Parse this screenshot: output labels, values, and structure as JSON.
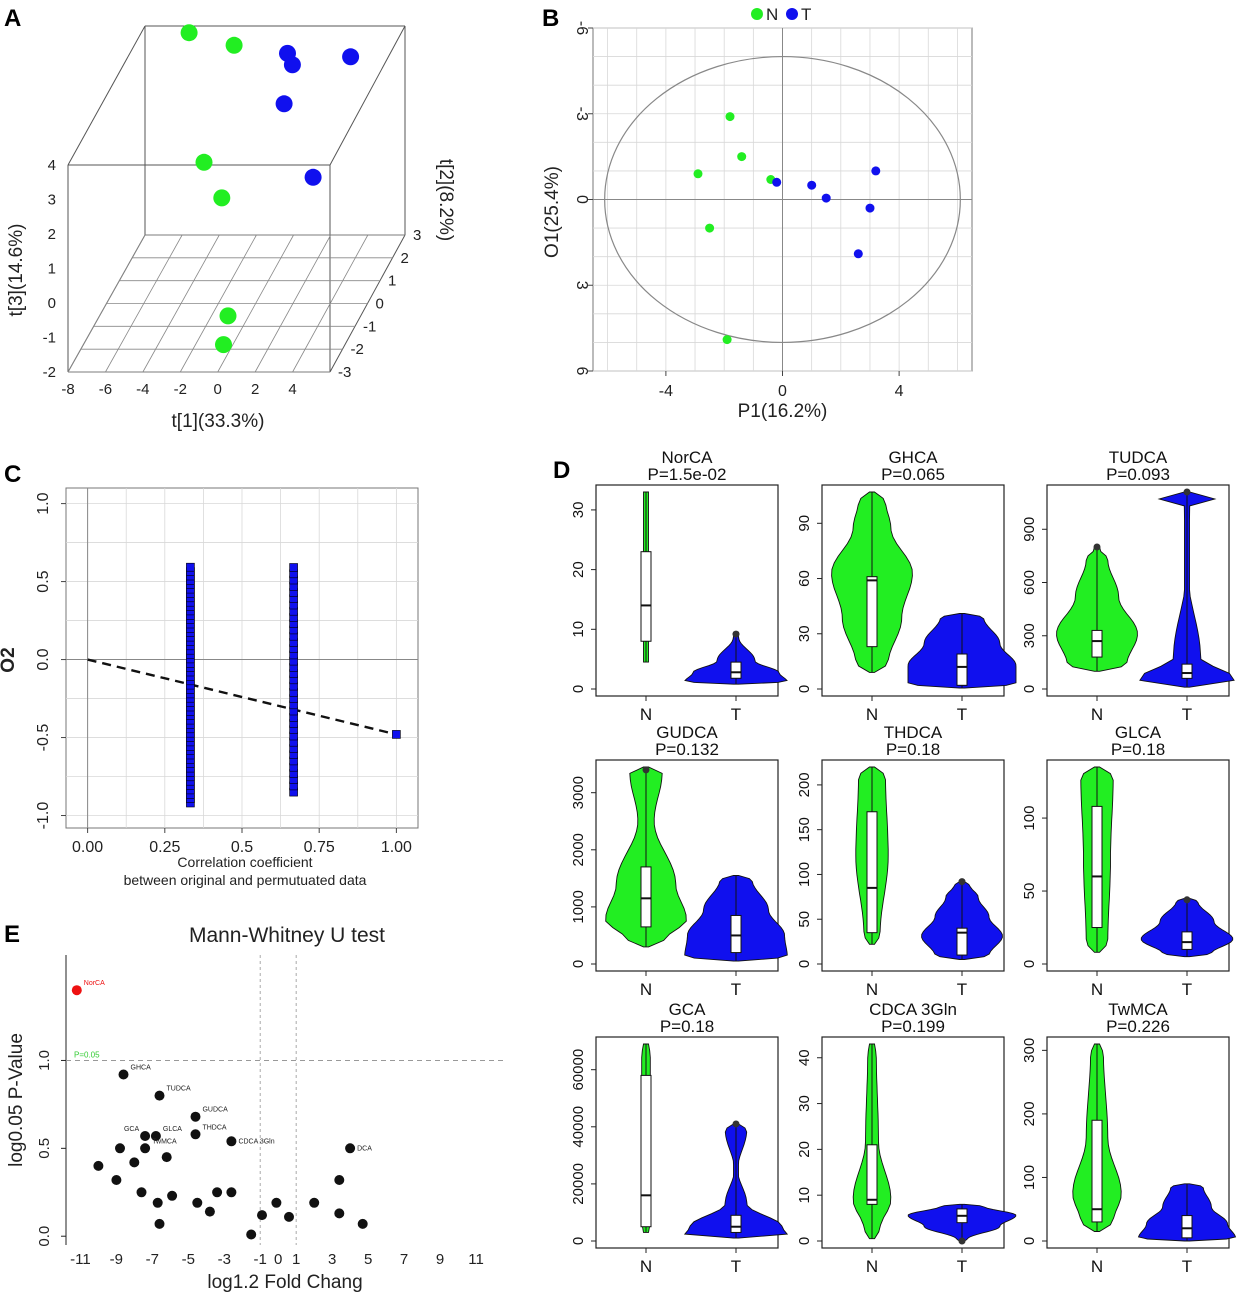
{
  "colors": {
    "green": "#22ee22",
    "blue": "#1010ee",
    "red": "#ee1111",
    "black": "#111111",
    "frame": "#555555",
    "grid": "#d8d8d8",
    "sig_text": "#33cc33"
  },
  "chart_data": [
    {
      "panel": "A",
      "type": "scatter",
      "projection": "3d",
      "xlabel": "t[1](33.3%)",
      "ylabel": "t[3](14.6%)",
      "zlabel": "t[2](8.2%)",
      "x_ticks": [
        "-8",
        "-6",
        "-4",
        "-2",
        "0",
        "2",
        "4"
      ],
      "y_ticks": [
        "-2",
        "-1",
        "0",
        "1",
        "2",
        "3",
        "4"
      ],
      "z_ticks": [
        "-3",
        "-2",
        "-1",
        "0",
        "1",
        "2",
        "3"
      ],
      "xlim": [
        -8,
        6
      ],
      "ylim": [
        -2,
        4
      ],
      "zlim": [
        -3,
        3
      ],
      "series": [
        {
          "name": "N",
          "color": "green",
          "points": [
            [
              -5.9,
              3.6,
              3.4
            ],
            [
              -3.2,
              3.5,
              3.0
            ],
            [
              -4.0,
              0.9,
              1.8
            ],
            [
              -2.7,
              0.2,
              1.3
            ],
            [
              -0.6,
              -1.5,
              -1.3
            ],
            [
              -0.3,
              -1.8,
              -2.1
            ]
          ]
        },
        {
          "name": "T",
          "color": "blue",
          "points": [
            [
              -2.5,
              4.4,
              4.6
            ],
            [
              -0.6,
              3.0,
              3.4
            ],
            [
              -0.2,
              2.8,
              3.2
            ],
            [
              -0.1,
              2.2,
              2.4
            ],
            [
              2.8,
              2.9,
              3.4
            ],
            [
              2.0,
              0.6,
              1.6
            ]
          ]
        }
      ]
    },
    {
      "panel": "B",
      "type": "scatter",
      "xlabel": "P1(16.2%)",
      "ylabel": "O1(25.4%)",
      "legend": [
        "N",
        "T"
      ],
      "x_ticks": [
        "-4",
        "0",
        "4"
      ],
      "y_ticks": [
        "-6",
        "-3",
        "0",
        "3",
        "6"
      ],
      "xlim": [
        -6.5,
        6.5
      ],
      "ylim": [
        6,
        -6
      ],
      "series": [
        {
          "name": "N",
          "color": "green",
          "points": [
            [
              -1.8,
              -2.9
            ],
            [
              -1.4,
              -1.5
            ],
            [
              -2.9,
              -0.9
            ],
            [
              -0.4,
              -0.7
            ],
            [
              -2.5,
              1.0
            ],
            [
              -1.9,
              4.9
            ]
          ]
        },
        {
          "name": "T",
          "color": "blue",
          "points": [
            [
              -0.2,
              -0.6
            ],
            [
              1.0,
              -0.5
            ],
            [
              1.5,
              -0.05
            ],
            [
              3.2,
              -1.0
            ],
            [
              3.0,
              0.3
            ],
            [
              2.6,
              1.9
            ]
          ]
        }
      ]
    },
    {
      "panel": "C",
      "type": "scatter",
      "ylabel": "O2",
      "xlabel": "Correlation coefficient",
      "xlabel2": "between original and permutuated data",
      "x_ticks": [
        "0.00",
        "0.25",
        "0.5",
        "0.75",
        "1.00"
      ],
      "y_ticks": [
        "1.0",
        "0.5",
        "0.0",
        "-0.5",
        "-1.0"
      ],
      "xlim": [
        -0.07,
        1.07
      ],
      "ylim": [
        -1.08,
        1.1
      ],
      "columns": [
        {
          "x": 0.333,
          "from": -0.92,
          "to": 0.6,
          "step": 0.028
        },
        {
          "x": 0.667,
          "from": -0.85,
          "to": 0.6,
          "step": 0.04
        }
      ],
      "point": [
        1.0,
        -0.48
      ],
      "trend": [
        [
          0,
          0
        ],
        [
          1.0,
          -0.48
        ]
      ]
    },
    {
      "panel": "D",
      "type": "violin",
      "categories": [
        "N",
        "T"
      ],
      "plots": [
        {
          "title": "NorCA",
          "p": "P=1.5e-02",
          "yt": [
            "0",
            "10",
            "20",
            "30"
          ],
          "ymin": 0,
          "ymax": 33,
          "N": {
            "min": 4.5,
            "max": 33,
            "q1": 8,
            "med": 14,
            "q3": 23,
            "out": null,
            "prof": [
              [
                0.35,
                0
              ],
              [
                0.42,
                0
              ],
              [
                0.5,
                0
              ],
              [
                0.6,
                0
              ]
            ]
          },
          "T": {
            "min": 0.8,
            "max": 9.5,
            "q1": 1.8,
            "med": 2.8,
            "q3": 4.5,
            "out": 9.2,
            "prof": [
              [
                0.05,
                0.95
              ],
              [
                0.22,
                0.8
              ],
              [
                0.45,
                0.35
              ],
              [
                0.9,
                0.05
              ]
            ]
          }
        },
        {
          "title": "GHCA",
          "p": "P=0.065",
          "yt": [
            "0",
            "30",
            "60",
            "90"
          ],
          "ymin": 0,
          "ymax": 107,
          "N": {
            "min": 9,
            "max": 107,
            "q1": 23,
            "med": 59,
            "q3": 61,
            "out": null,
            "prof": [
              [
                0.05,
                0.3
              ],
              [
                0.3,
                0.55
              ],
              [
                0.55,
                0.75
              ],
              [
                0.8,
                0.35
              ],
              [
                0.95,
                0.25
              ]
            ]
          },
          "T": {
            "min": 0.5,
            "max": 41,
            "q1": 2,
            "med": 12,
            "q3": 19,
            "out": null,
            "prof": [
              [
                0.05,
                1
              ],
              [
                0.3,
                1
              ],
              [
                0.6,
                0.7
              ],
              [
                0.95,
                0.4
              ]
            ]
          }
        },
        {
          "title": "TUDCA",
          "p": "P=0.093",
          "yt": [
            "0",
            "300",
            "600",
            "900"
          ],
          "ymin": 0,
          "ymax": 1110,
          "N": {
            "min": 100,
            "max": 800,
            "q1": 180,
            "med": 270,
            "q3": 330,
            "out": 800,
            "prof": [
              [
                0.05,
                0.55
              ],
              [
                0.3,
                0.75
              ],
              [
                0.6,
                0.4
              ],
              [
                0.9,
                0.2
              ]
            ]
          },
          "T": {
            "min": 10,
            "max": 1110,
            "q1": 60,
            "med": 90,
            "q3": 140,
            "out": 1110,
            "prof": [
              [
                0.02,
                0.9
              ],
              [
                0.05,
                0.85
              ],
              [
                0.15,
                0.25
              ],
              [
                0.6,
                0.01
              ],
              [
                0.93,
                0.05
              ],
              [
                0.98,
                0.65
              ]
            ]
          }
        },
        {
          "title": "GUDCA",
          "p": "P=0.132",
          "yt": [
            "0",
            "1000",
            "2000",
            "3000"
          ],
          "ymin": 0,
          "ymax": 3450,
          "N": {
            "min": 300,
            "max": 3450,
            "q1": 650,
            "med": 1150,
            "q3": 1700,
            "out": 3400,
            "prof": [
              [
                0.05,
                0.4
              ],
              [
                0.15,
                0.75
              ],
              [
                0.35,
                0.55
              ],
              [
                0.7,
                0.15
              ],
              [
                0.97,
                0.3
              ]
            ]
          },
          "T": {
            "min": 50,
            "max": 1550,
            "q1": 200,
            "med": 500,
            "q3": 850,
            "out": null,
            "prof": [
              [
                0.05,
                0.95
              ],
              [
                0.3,
                0.9
              ],
              [
                0.6,
                0.6
              ],
              [
                0.95,
                0.3
              ]
            ]
          }
        },
        {
          "title": "THDCA",
          "p": "P=0.18",
          "yt": [
            "0",
            "50",
            "100",
            "150",
            "200"
          ],
          "ymin": 0,
          "ymax": 220,
          "N": {
            "min": 22,
            "max": 220,
            "q1": 35,
            "med": 85,
            "q3": 170,
            "out": null,
            "prof": [
              [
                0.05,
                0.15
              ],
              [
                0.5,
                0.3
              ],
              [
                0.95,
                0.25
              ]
            ]
          },
          "T": {
            "min": 5,
            "max": 92,
            "q1": 10,
            "med": 35,
            "q3": 40,
            "out": 92,
            "prof": [
              [
                0.05,
                0.5
              ],
              [
                0.3,
                0.75
              ],
              [
                0.55,
                0.5
              ],
              [
                0.8,
                0.3
              ],
              [
                0.95,
                0.15
              ]
            ]
          }
        },
        {
          "title": "GLCA",
          "p": "P=0.18",
          "yt": [
            "0",
            "50",
            "100"
          ],
          "ymin": 0,
          "ymax": 135,
          "N": {
            "min": 8,
            "max": 135,
            "q1": 25,
            "med": 60,
            "q3": 108,
            "out": null,
            "prof": [
              [
                0.05,
                0.2
              ],
              [
                0.5,
                0.25
              ],
              [
                0.95,
                0.3
              ]
            ]
          },
          "T": {
            "min": 5,
            "max": 45,
            "q1": 10,
            "med": 15,
            "q3": 22,
            "out": 44,
            "prof": [
              [
                0.05,
                0.45
              ],
              [
                0.3,
                0.85
              ],
              [
                0.6,
                0.5
              ],
              [
                0.95,
                0.2
              ]
            ]
          }
        },
        {
          "title": "GCA",
          "p": "P=0.18",
          "yt": [
            "0",
            "20000",
            "40000",
            "60000"
          ],
          "ymin": 0,
          "ymax": 69000,
          "N": {
            "min": 3000,
            "max": 69000,
            "q1": 5000,
            "med": 16000,
            "q3": 58000,
            "out": null,
            "prof": [
              [
                0.05,
                0.08
              ],
              [
                0.5,
                0.08
              ],
              [
                0.95,
                0.08
              ]
            ]
          },
          "T": {
            "min": 1000,
            "max": 41000,
            "q1": 3000,
            "med": 5000,
            "q3": 9000,
            "out": 41000,
            "prof": [
              [
                0.03,
                0.95
              ],
              [
                0.1,
                0.85
              ],
              [
                0.3,
                0.2
              ],
              [
                0.6,
                0.03
              ],
              [
                0.95,
                0.2
              ]
            ]
          }
        },
        {
          "title": "CDCA 3Gln",
          "p": "P=0.199",
          "yt": [
            "0",
            "10",
            "20",
            "30",
            "40"
          ],
          "ymin": 0,
          "ymax": 43,
          "N": {
            "min": 0.5,
            "max": 43,
            "q1": 8,
            "med": 9,
            "q3": 21,
            "out": null,
            "prof": [
              [
                0.05,
                0.15
              ],
              [
                0.2,
                0.35
              ],
              [
                0.5,
                0.12
              ],
              [
                0.95,
                0.08
              ]
            ]
          },
          "T": {
            "min": 0,
            "max": 8,
            "q1": 4,
            "med": 5.5,
            "q3": 7,
            "out": 0,
            "prof": [
              [
                0.05,
                0.1
              ],
              [
                0.4,
                0.7
              ],
              [
                0.7,
                1
              ],
              [
                0.95,
                0.4
              ]
            ]
          }
        },
        {
          "title": "TwMCA",
          "p": "P=0.226",
          "yt": [
            "0",
            "100",
            "200",
            "300"
          ],
          "ymin": 0,
          "ymax": 310,
          "N": {
            "min": 15,
            "max": 310,
            "q1": 30,
            "med": 50,
            "q3": 190,
            "out": null,
            "prof": [
              [
                0.05,
                0.3
              ],
              [
                0.2,
                0.45
              ],
              [
                0.5,
                0.2
              ],
              [
                0.95,
                0.12
              ]
            ]
          },
          "T": {
            "min": 0,
            "max": 90,
            "q1": 5,
            "med": 20,
            "q3": 40,
            "out": null,
            "prof": [
              [
                0.05,
                0.9
              ],
              [
                0.3,
                0.75
              ],
              [
                0.6,
                0.45
              ],
              [
                0.95,
                0.3
              ]
            ]
          }
        }
      ]
    },
    {
      "panel": "E",
      "type": "scatter",
      "title": "Mann-Whitney U test",
      "xlabel": "log1.2 Fold Chang",
      "ylabel": "log0.05 P-Value",
      "x_ticks": [
        "-11",
        "-9",
        "-7",
        "-5",
        "-3",
        "-1",
        "0",
        "1",
        "3",
        "5",
        "7",
        "9",
        "11"
      ],
      "y_ticks": [
        "0.0",
        "0.5",
        "1.0"
      ],
      "xlim": [
        -11.8,
        12.5
      ],
      "ylim": [
        -0.05,
        1.6
      ],
      "threshold_label": "P=0.05",
      "threshold": 1.0,
      "vlines": [
        -1,
        1
      ],
      "labeled": [
        {
          "label": "NorCA",
          "x": -11.2,
          "y": 1.4,
          "color": "red"
        },
        {
          "label": "GHCA",
          "x": -8.6,
          "y": 0.92,
          "color": "black"
        },
        {
          "label": "TUDCA",
          "x": -6.6,
          "y": 0.8,
          "color": "black"
        },
        {
          "label": "GUDCA",
          "x": -4.6,
          "y": 0.68,
          "color": "black"
        },
        {
          "label": "THDCA",
          "x": -4.6,
          "y": 0.58,
          "color": "black"
        },
        {
          "label": "GCA",
          "x": -7.4,
          "y": 0.57,
          "color": "black"
        },
        {
          "label": "GLCA",
          "x": -6.8,
          "y": 0.57,
          "color": "black"
        },
        {
          "label": "TwMCA",
          "x": -7.4,
          "y": 0.5,
          "color": "black"
        },
        {
          "label": "CDCA 3Gln",
          "x": -2.6,
          "y": 0.54,
          "color": "black"
        },
        {
          "label": "DCA",
          "x": 4.0,
          "y": 0.5,
          "color": "black"
        }
      ],
      "points": [
        [
          -10.0,
          0.4
        ],
        [
          -9.0,
          0.32
        ],
        [
          -8.8,
          0.5
        ],
        [
          -8.0,
          0.42
        ],
        [
          -7.6,
          0.25
        ],
        [
          -6.7,
          0.19
        ],
        [
          -6.6,
          0.07
        ],
        [
          -6.2,
          0.45
        ],
        [
          -5.9,
          0.23
        ],
        [
          -4.5,
          0.19
        ],
        [
          -3.8,
          0.14
        ],
        [
          -3.4,
          0.25
        ],
        [
          -2.6,
          0.25
        ],
        [
          -1.5,
          0.01
        ],
        [
          -0.9,
          0.12
        ],
        [
          -0.1,
          0.19
        ],
        [
          0.6,
          0.11
        ],
        [
          2.0,
          0.19
        ],
        [
          3.4,
          0.32
        ],
        [
          3.4,
          0.13
        ],
        [
          4.7,
          0.07
        ]
      ]
    }
  ]
}
